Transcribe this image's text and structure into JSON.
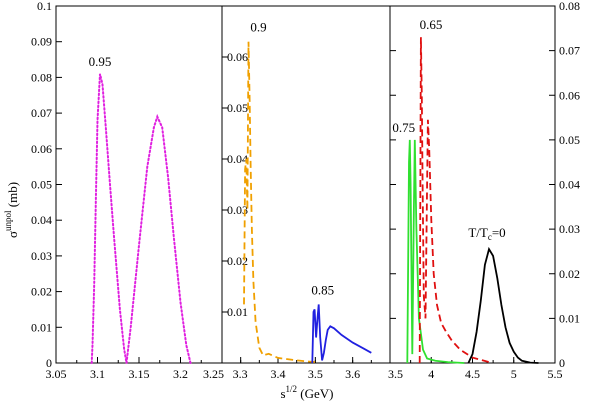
{
  "chart_data": [
    {
      "type": "line",
      "panel": "left",
      "xlim": [
        3.05,
        3.25
      ],
      "ylim": [
        0,
        0.1
      ],
      "x_ticks": [
        "3.05",
        "3.1",
        "3.15",
        "3.2",
        "3.25"
      ],
      "y_ticks": [
        "0",
        "0.01",
        "0.02",
        "0.03",
        "0.04",
        "0.05",
        "0.06",
        "0.07",
        "0.08",
        "0.09",
        "0.1"
      ],
      "series": [
        {
          "label": "0.95",
          "style": "dotted",
          "color": "#e020e0",
          "x": [
            3.093,
            3.094,
            3.096,
            3.098,
            3.1,
            3.103,
            3.106,
            3.11,
            3.115,
            3.12,
            3.127,
            3.132,
            3.135,
            3.14,
            3.15,
            3.16,
            3.168,
            3.172,
            3.178,
            3.185,
            3.192,
            3.2,
            3.207,
            3.212
          ],
          "y": [
            0.0,
            0.005,
            0.022,
            0.045,
            0.068,
            0.081,
            0.078,
            0.066,
            0.05,
            0.035,
            0.015,
            0.004,
            0.0,
            0.01,
            0.033,
            0.055,
            0.066,
            0.069,
            0.066,
            0.052,
            0.035,
            0.017,
            0.005,
            0.0
          ]
        }
      ]
    },
    {
      "type": "line",
      "panel": "middle",
      "xlim": [
        3.25,
        3.7
      ],
      "ylim": [
        0,
        0.07
      ],
      "x_ticks": [
        "3.3",
        "3.4",
        "3.5",
        "3.6"
      ],
      "y_ticks": [
        "0.01",
        "0.02",
        "0.03",
        "0.04",
        "0.05",
        "0.06"
      ],
      "series": [
        {
          "label": "0.9",
          "style": "dashed",
          "color": "#f0a000",
          "x": [
            3.309,
            3.312,
            3.315,
            3.318,
            3.321,
            3.324,
            3.327,
            3.33,
            3.334,
            3.34,
            3.35,
            3.36,
            3.375,
            3.4,
            3.44,
            3.48,
            3.5
          ],
          "y": [
            0.0115,
            0.038,
            0.04,
            0.03,
            0.063,
            0.052,
            0.038,
            0.026,
            0.016,
            0.008,
            0.003,
            0.0015,
            0.0018,
            0.001,
            0.0006,
            0.0003,
            0.0002
          ]
        },
        {
          "label": "0.85",
          "style": "solid",
          "color": "#2020e0",
          "x": [
            3.492,
            3.495,
            3.498,
            3.502,
            3.506,
            3.509,
            3.513,
            3.518,
            3.523,
            3.528,
            3.533,
            3.54,
            3.55,
            3.57,
            3.6,
            3.63,
            3.65
          ],
          "y": [
            0.0,
            0.01,
            0.0105,
            0.005,
            0.009,
            0.0115,
            0.005,
            0.0005,
            0.002,
            0.0045,
            0.0065,
            0.0072,
            0.0068,
            0.0055,
            0.004,
            0.0028,
            0.002
          ]
        }
      ]
    },
    {
      "type": "line",
      "panel": "right",
      "xlim": [
        3.5,
        5.5
      ],
      "ylim": [
        0,
        0.08
      ],
      "x_ticks": [
        "3.5",
        "4",
        "4.5",
        "5",
        "5.5"
      ],
      "y_ticks": [
        "0",
        "0.01",
        "0.02",
        "0.03",
        "0.04",
        "0.05",
        "0.06",
        "0.07",
        "0.08"
      ],
      "series": [
        {
          "label": "0.75",
          "style": "solid",
          "color": "#30e030",
          "x": [
            3.71,
            3.73,
            3.74,
            3.75,
            3.77,
            3.79,
            3.8,
            3.82,
            3.85,
            3.9,
            3.95,
            4.05,
            4.2,
            4.4
          ],
          "y": [
            0.0,
            0.045,
            0.05,
            0.04,
            0.002,
            0.035,
            0.05,
            0.03,
            0.01,
            0.003,
            0.001,
            0.0005,
            0.0002,
            0.0
          ],
          "draw_label": true
        },
        {
          "label": "0.65",
          "style": "dashed",
          "color": "#e01010",
          "x": [
            3.86,
            3.875,
            3.885,
            3.895,
            3.91,
            3.93,
            3.95,
            3.96,
            3.975,
            4.0,
            4.03,
            4.07,
            4.12,
            4.18,
            4.25,
            4.35,
            4.5,
            4.7
          ],
          "y": [
            0.0,
            0.073,
            0.06,
            0.04,
            0.015,
            0.01,
            0.04,
            0.0545,
            0.048,
            0.032,
            0.02,
            0.013,
            0.009,
            0.007,
            0.005,
            0.003,
            0.0012,
            0.0002
          ]
        },
        {
          "label": "T/T",
          "label_sub": "c",
          "label_tail": "=0",
          "style": "solid",
          "color": "#000000",
          "x": [
            4.45,
            4.5,
            4.55,
            4.6,
            4.65,
            4.7,
            4.75,
            4.8,
            4.85,
            4.9,
            4.95,
            5.0,
            5.05,
            5.1,
            5.2,
            5.3
          ],
          "y": [
            0.0,
            0.002,
            0.007,
            0.014,
            0.022,
            0.0255,
            0.024,
            0.019,
            0.013,
            0.008,
            0.0045,
            0.0025,
            0.0012,
            0.0005,
            0.0001,
            0.0
          ]
        }
      ]
    }
  ],
  "axes": {
    "ylabel": "σ",
    "ylabel_sup": "unpol",
    "ylabel_tail": " (mb)",
    "xlabel": "s",
    "xlabel_sup": "1/2",
    "xlabel_tail": " (GeV)"
  }
}
